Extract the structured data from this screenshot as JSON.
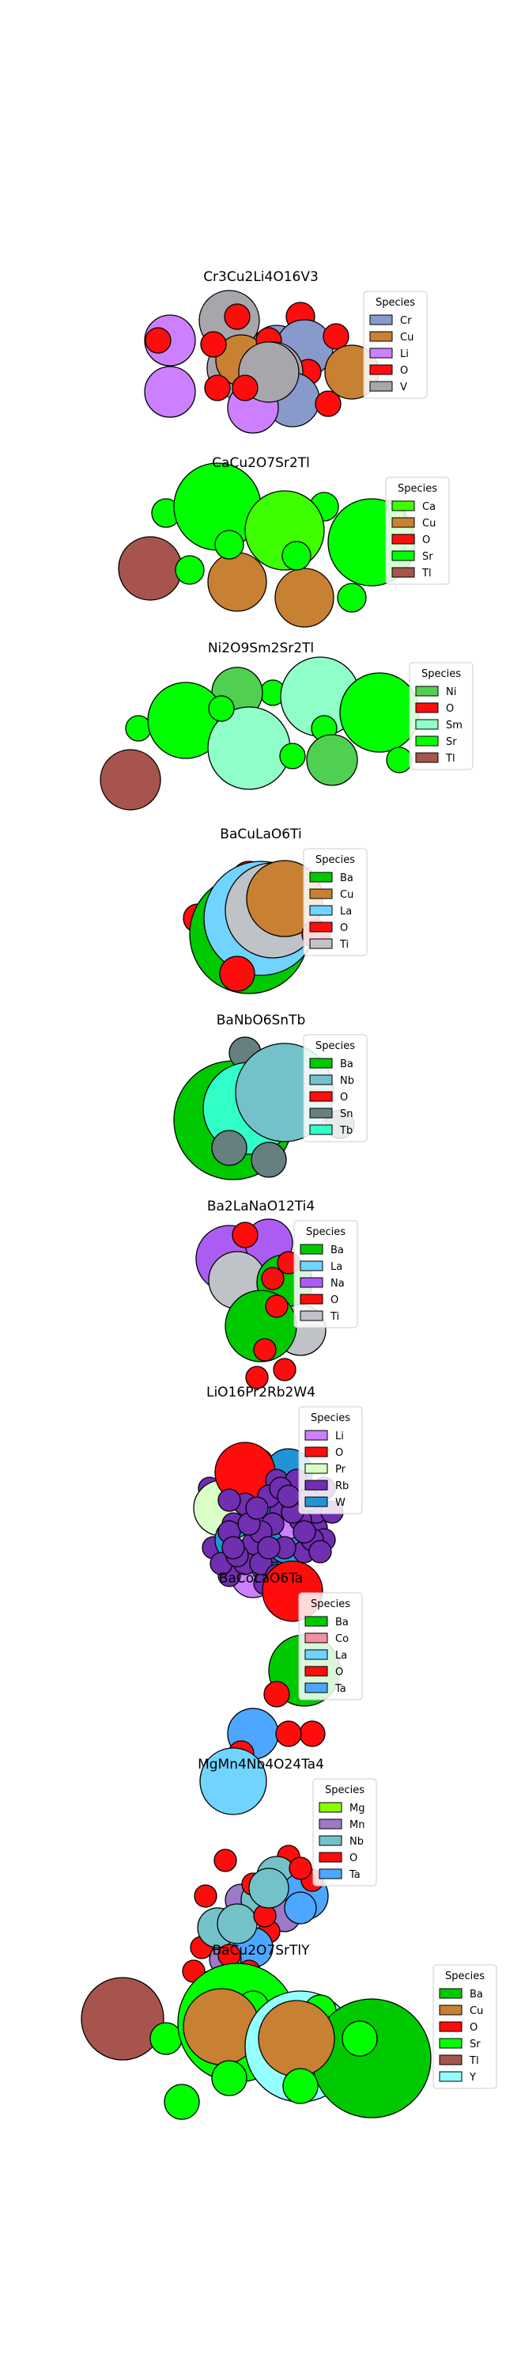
{
  "figure": {
    "legend_title": "Species",
    "panels": [
      {
        "title": "Cr3Cu2Li4O16V3",
        "species": [
          {
            "name": "Cr",
            "color": "#8899cc"
          },
          {
            "name": "Cu",
            "color": "#c88033"
          },
          {
            "name": "Li",
            "color": "#cc80ff"
          },
          {
            "name": "O",
            "color": "#ff0d0d"
          },
          {
            "name": "V",
            "color": "#a6a6ab"
          }
        ]
      },
      {
        "title": "CaCu2O7Sr2Tl",
        "species": [
          {
            "name": "Ca",
            "color": "#3dff00"
          },
          {
            "name": "Cu",
            "color": "#c88033"
          },
          {
            "name": "O",
            "color": "#ff0d0d"
          },
          {
            "name": "Sr",
            "color": "#00ff00"
          },
          {
            "name": "Tl",
            "color": "#a6544d"
          }
        ]
      },
      {
        "title": "Ni2O9Sm2Sr2Tl",
        "species": [
          {
            "name": "Ni",
            "color": "#50d050"
          },
          {
            "name": "O",
            "color": "#ff0d0d"
          },
          {
            "name": "Sm",
            "color": "#8fffc7"
          },
          {
            "name": "Sr",
            "color": "#00ff00"
          },
          {
            "name": "Tl",
            "color": "#a6544d"
          }
        ]
      },
      {
        "title": "BaCuLaO6Ti",
        "species": [
          {
            "name": "Ba",
            "color": "#00c900"
          },
          {
            "name": "Cu",
            "color": "#c88033"
          },
          {
            "name": "La",
            "color": "#70d4ff"
          },
          {
            "name": "O",
            "color": "#ff0d0d"
          },
          {
            "name": "Ti",
            "color": "#bfc2c7"
          }
        ]
      },
      {
        "title": "BaNbO6SnTb",
        "species": [
          {
            "name": "Ba",
            "color": "#00c900"
          },
          {
            "name": "Nb",
            "color": "#73c2c9"
          },
          {
            "name": "O",
            "color": "#ff0d0d"
          },
          {
            "name": "Sn",
            "color": "#668080"
          },
          {
            "name": "Tb",
            "color": "#30ffc7"
          }
        ]
      },
      {
        "title": "Ba2LaNaO12Ti4",
        "species": [
          {
            "name": "Ba",
            "color": "#00c900"
          },
          {
            "name": "La",
            "color": "#70d4ff"
          },
          {
            "name": "Na",
            "color": "#ab5cf2"
          },
          {
            "name": "O",
            "color": "#ff0d0d"
          },
          {
            "name": "Ti",
            "color": "#bfc2c7"
          }
        ]
      },
      {
        "title": "LiO16Pr2Rb2W4",
        "species": [
          {
            "name": "Li",
            "color": "#cc80ff"
          },
          {
            "name": "O",
            "color": "#ff0d0d"
          },
          {
            "name": "Pr",
            "color": "#d9ffc7"
          },
          {
            "name": "Rb",
            "color": "#702eb0"
          },
          {
            "name": "W",
            "color": "#2194d6"
          }
        ]
      },
      {
        "title": "BaCoLaO6Ta",
        "species": [
          {
            "name": "Ba",
            "color": "#00c900"
          },
          {
            "name": "Co",
            "color": "#f090a0"
          },
          {
            "name": "La",
            "color": "#70d4ff"
          },
          {
            "name": "O",
            "color": "#ff0d0d"
          },
          {
            "name": "Ta",
            "color": "#4da6ff"
          }
        ]
      },
      {
        "title": "MgMn4Nb4O24Ta4",
        "species": [
          {
            "name": "Mg",
            "color": "#8aff00"
          },
          {
            "name": "Mn",
            "color": "#9c7ac7"
          },
          {
            "name": "Nb",
            "color": "#73c2c9"
          },
          {
            "name": "O",
            "color": "#ff0d0d"
          },
          {
            "name": "Ta",
            "color": "#4da6ff"
          }
        ]
      },
      {
        "title": "BaCu2O7SrTlY",
        "species": [
          {
            "name": "Ba",
            "color": "#00c900"
          },
          {
            "name": "Cu",
            "color": "#c88033"
          },
          {
            "name": "O",
            "color": "#ff0d0d"
          },
          {
            "name": "Sr",
            "color": "#00ff00"
          },
          {
            "name": "Tl",
            "color": "#a6544d"
          },
          {
            "name": "Y",
            "color": "#94ffff"
          }
        ]
      }
    ]
  }
}
